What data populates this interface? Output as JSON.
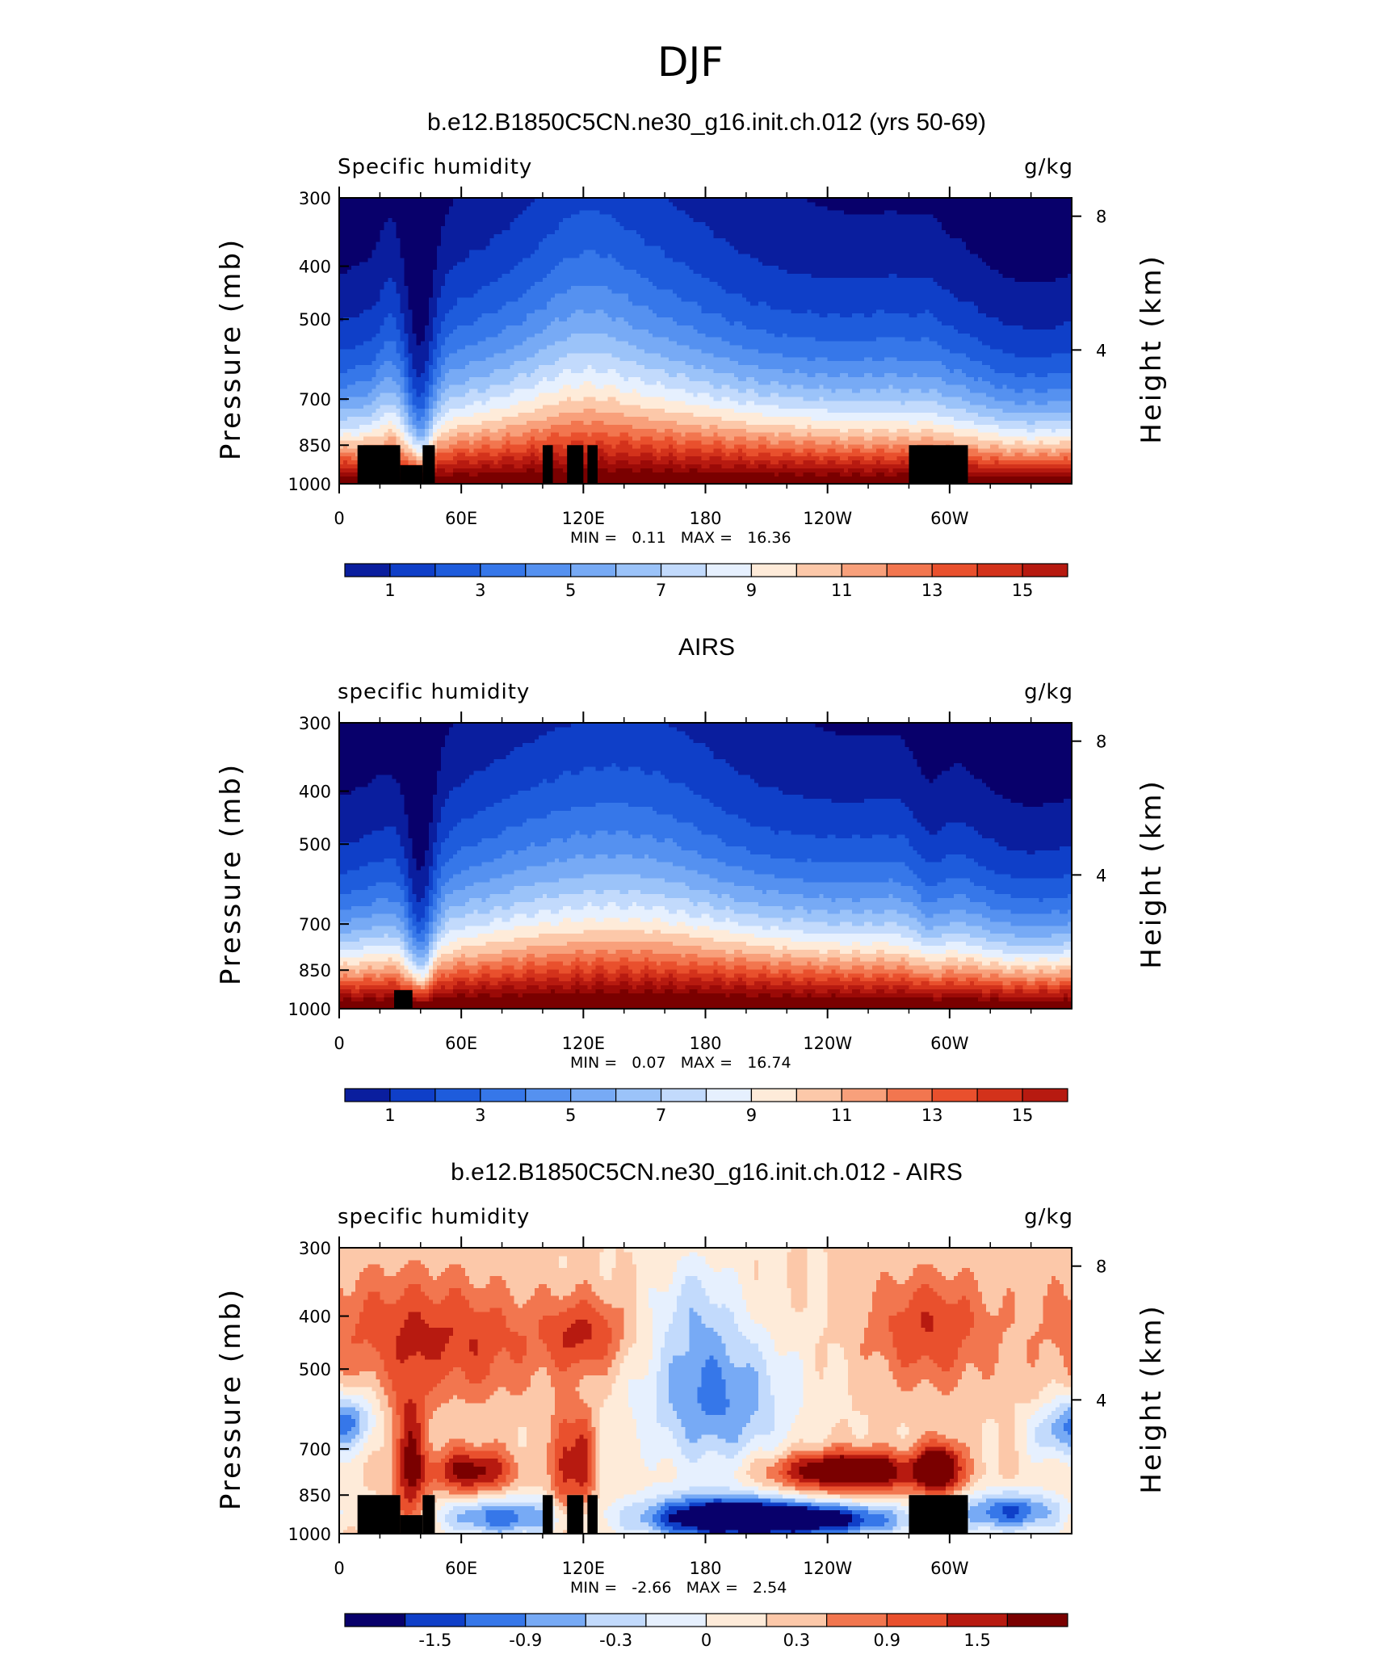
{
  "figure": {
    "title": "DJF"
  },
  "palette": {
    "full": [
      "#08006b",
      "#0a1e9e",
      "#0f3fc8",
      "#1e5cdc",
      "#3677e9",
      "#5591f0",
      "#77aaf5",
      "#9bc3f9",
      "#c2dafc",
      "#e6f0fe",
      "#feebd9",
      "#fcc8a9",
      "#f8a07b",
      "#f2764f",
      "#e9502d",
      "#d3321b",
      "#b71a10",
      "#9b0a07",
      "#7a0000"
    ],
    "diff": [
      "#08006b",
      "#0f3fc8",
      "#3677e9",
      "#77aaf5",
      "#c2dafc",
      "#e6f0fe",
      "#feebd9",
      "#fcc8a9",
      "#f2764f",
      "#e9502d",
      "#b71a10",
      "#7a0000"
    ]
  },
  "chart_data": [
    {
      "type": "heatmap",
      "title": "b.e12.B1850C5CN.ne30_g16.init.ch.012 (yrs 50-69)",
      "left_label": "Specific humidity",
      "right_label": "g/kg",
      "ylabel": "Pressure (mb)",
      "y2label": "Height (km)",
      "y_ticks": [
        "300",
        "400",
        "500",
        "700",
        "850",
        "1000"
      ],
      "y2_ticks": [
        "8",
        "4"
      ],
      "x_ticks": [
        "0",
        "60E",
        "120E",
        "180",
        "120W",
        "60W"
      ],
      "xlim": [
        0,
        360
      ],
      "ylim_mb": [
        1000,
        300
      ],
      "stats": {
        "min_label": "MIN =",
        "min": "0.11",
        "max_label": "MAX =",
        "max": "16.36"
      },
      "colorbar_labels": [
        "1",
        "3",
        "5",
        "7",
        "9",
        "11",
        "13",
        "15"
      ],
      "field": "q",
      "topography": [
        [
          9,
          30,
          850
        ],
        [
          30,
          41,
          925
        ],
        [
          41,
          47,
          850
        ],
        [
          100,
          105,
          850
        ],
        [
          112,
          120,
          850
        ],
        [
          122,
          127,
          850
        ],
        [
          280,
          309,
          850
        ]
      ]
    },
    {
      "type": "heatmap",
      "title": "AIRS",
      "left_label": "specific humidity",
      "right_label": "g/kg",
      "ylabel": "Pressure (mb)",
      "y2label": "Height (km)",
      "y_ticks": [
        "300",
        "400",
        "500",
        "700",
        "850",
        "1000"
      ],
      "y2_ticks": [
        "8",
        "4"
      ],
      "x_ticks": [
        "0",
        "60E",
        "120E",
        "180",
        "120W",
        "60W"
      ],
      "xlim": [
        0,
        360
      ],
      "ylim_mb": [
        1000,
        300
      ],
      "stats": {
        "min_label": "MIN =",
        "min": "0.07",
        "max_label": "MAX =",
        "max": "16.74"
      },
      "colorbar_labels": [
        "1",
        "3",
        "5",
        "7",
        "9",
        "11",
        "13",
        "15"
      ],
      "field": "q",
      "topography": [
        [
          27,
          36,
          925
        ]
      ]
    },
    {
      "type": "heatmap",
      "title": "b.e12.B1850C5CN.ne30_g16.init.ch.012 - AIRS",
      "left_label": "specific humidity",
      "right_label": "g/kg",
      "ylabel": "Pressure (mb)",
      "y2label": "Height (km)",
      "y_ticks": [
        "300",
        "400",
        "500",
        "700",
        "850",
        "1000"
      ],
      "y2_ticks": [
        "8",
        "4"
      ],
      "x_ticks": [
        "0",
        "60E",
        "120E",
        "180",
        "120W",
        "60W"
      ],
      "xlim": [
        0,
        360
      ],
      "ylim_mb": [
        1000,
        300
      ],
      "stats": {
        "min_label": "MIN =",
        "min": "-2.66",
        "max_label": "MAX =",
        "max": "2.54"
      },
      "colorbar_labels": [
        "-1.5",
        "-0.9",
        "-0.3",
        "0",
        "0.3",
        "0.9",
        "1.5"
      ],
      "field": "diff",
      "topography": [
        [
          9,
          30,
          850
        ],
        [
          30,
          41,
          925
        ],
        [
          41,
          47,
          850
        ],
        [
          100,
          105,
          850
        ],
        [
          112,
          120,
          850
        ],
        [
          122,
          127,
          850
        ],
        [
          280,
          309,
          850
        ]
      ]
    }
  ]
}
